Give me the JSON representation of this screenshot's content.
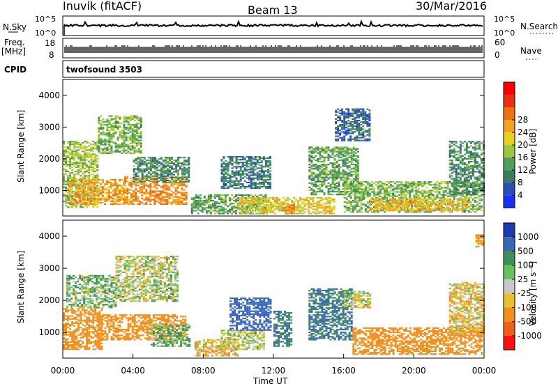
{
  "header": {
    "station": "Inuvik (fitACF)",
    "beam": "Beam 13",
    "date": "30/Mar/2016"
  },
  "strips": {
    "nsky_label": "N.Sky",
    "nsky_ticks": [
      "10^5",
      "10^0"
    ],
    "nsearch_label": "N.Search",
    "nsearch_ticks": [
      "10^5",
      "10^0"
    ],
    "freq_label_1": "Freq.",
    "freq_label_2": "[MHz]",
    "freq_ticks": [
      "18",
      "8"
    ],
    "nave_label": "Nave",
    "nave_ticks": [
      "60",
      "0"
    ],
    "cpid_label": "CPID",
    "cpid_value": "twofsound 3503"
  },
  "chart_data": [
    {
      "type": "heatmap",
      "panel": "power",
      "ylabel": "Slant Range [km]",
      "xlabel": "",
      "yticks": [
        "1000",
        "2000",
        "3000",
        "4000"
      ],
      "ylim": [
        200,
        4500
      ],
      "colorbar_label": "Power [dB]",
      "colorbar_ticks": [
        "4",
        "8",
        "12",
        "16",
        "20",
        "24",
        "28"
      ],
      "colorbar_colors": [
        "#1530ff",
        "#2d4fb5",
        "#3a7d5a",
        "#4fa05a",
        "#9bc83a",
        "#e8d020",
        "#f5a020",
        "#f07010",
        "#e83010",
        "#ff0000"
      ],
      "regions": [
        {
          "t0": 0.0,
          "t1": 2.0,
          "r0": 500,
          "r1": 2600,
          "v": 18
        },
        {
          "t0": 0.3,
          "t1": 3.5,
          "r0": 600,
          "r1": 1400,
          "v": 26
        },
        {
          "t0": 2.0,
          "t1": 4.5,
          "r0": 2200,
          "r1": 3400,
          "v": 16
        },
        {
          "t0": 3.5,
          "t1": 7.0,
          "r0": 600,
          "r1": 1500,
          "v": 28
        },
        {
          "t0": 4.0,
          "t1": 7.2,
          "r0": 1300,
          "r1": 2100,
          "v": 12
        },
        {
          "t0": 7.3,
          "t1": 11.5,
          "r0": 300,
          "r1": 900,
          "v": 14
        },
        {
          "t0": 9.0,
          "t1": 11.8,
          "r0": 1100,
          "r1": 2100,
          "v": 10
        },
        {
          "t0": 10.0,
          "t1": 15.5,
          "r0": 300,
          "r1": 800,
          "v": 22
        },
        {
          "t0": 12.5,
          "t1": 13.2,
          "r0": 300,
          "r1": 600,
          "v": 30
        },
        {
          "t0": 14.0,
          "t1": 16.8,
          "r0": 900,
          "r1": 2400,
          "v": 14
        },
        {
          "t0": 15.5,
          "t1": 17.5,
          "r0": 2600,
          "r1": 3600,
          "v": 8
        },
        {
          "t0": 16.0,
          "t1": 23.9,
          "r0": 350,
          "r1": 1300,
          "v": 16
        },
        {
          "t0": 17.5,
          "t1": 23.0,
          "r0": 400,
          "r1": 800,
          "v": 24
        },
        {
          "t0": 22.0,
          "t1": 24.0,
          "r0": 900,
          "r1": 2600,
          "v": 12
        }
      ]
    },
    {
      "type": "heatmap",
      "panel": "velocity",
      "ylabel": "Slant Range [km]",
      "xlabel": "Time UT",
      "yticks": [
        "1000",
        "2000",
        "3000",
        "4000"
      ],
      "ylim": [
        200,
        4500
      ],
      "xticks": [
        "00:00",
        "04:00",
        "08:00",
        "12:00",
        "16:00",
        "20:00",
        "00:00"
      ],
      "colorbar_label": "Velocity [m s⁻¹]",
      "colorbar_ticks": [
        "1000",
        "500",
        "100",
        "25",
        "-25",
        "-100",
        "-500",
        "-1000"
      ],
      "colorbar_colors": [
        "#1a3cb0",
        "#3a66b8",
        "#3d8f58",
        "#65c25a",
        "#c8c8c8",
        "#e8c028",
        "#f0901a",
        "#f06010",
        "#ff1010"
      ],
      "regions": [
        {
          "t0": 0.0,
          "t1": 2.2,
          "r0": 500,
          "r1": 1800,
          "v": -300
        },
        {
          "t0": 0.2,
          "t1": 3.0,
          "r0": 1800,
          "r1": 2800,
          "v": 60
        },
        {
          "t0": 2.0,
          "t1": 7.0,
          "r0": 800,
          "r1": 1600,
          "v": -300
        },
        {
          "t0": 3.0,
          "t1": 6.5,
          "r0": 2000,
          "r1": 3400,
          "v": 0
        },
        {
          "t0": 5.0,
          "t1": 7.2,
          "r0": 600,
          "r1": 1300,
          "v": 80
        },
        {
          "t0": 7.5,
          "t1": 10.0,
          "r0": 300,
          "r1": 800,
          "v": -80
        },
        {
          "t0": 9.0,
          "t1": 11.5,
          "r0": 500,
          "r1": 1100,
          "v": 0
        },
        {
          "t0": 9.5,
          "t1": 11.8,
          "r0": 1100,
          "r1": 2100,
          "v": 700
        },
        {
          "t0": 12.0,
          "t1": 13.0,
          "r0": 600,
          "r1": 1700,
          "v": 500
        },
        {
          "t0": 14.0,
          "t1": 16.5,
          "r0": 800,
          "r1": 2400,
          "v": 500
        },
        {
          "t0": 16.0,
          "t1": 17.5,
          "r0": 1800,
          "r1": 2300,
          "v": 0
        },
        {
          "t0": 16.5,
          "t1": 23.9,
          "r0": 350,
          "r1": 1200,
          "v": -300
        },
        {
          "t0": 22.0,
          "t1": 24.0,
          "r0": 1000,
          "r1": 2600,
          "v": -60
        },
        {
          "t0": 23.5,
          "t1": 24.0,
          "r0": 3700,
          "r1": 4100,
          "v": -200
        }
      ]
    }
  ]
}
